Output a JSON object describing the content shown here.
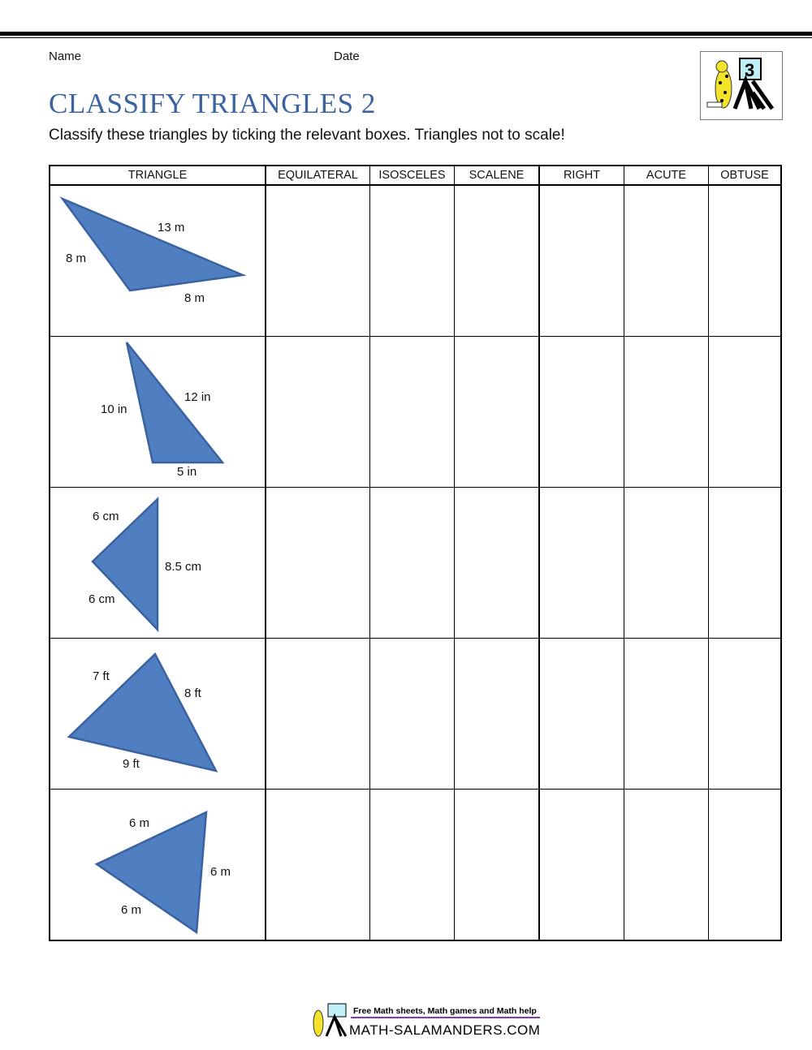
{
  "header": {
    "name_label": "Name",
    "date_label": "Date",
    "title": "CLASSIFY TRIANGLES 2",
    "instructions": "Classify these triangles by ticking the relevant boxes. Triangles not to scale!",
    "logo_grade": "3"
  },
  "table": {
    "columns": [
      "TRIANGLE",
      "EQUILATERAL",
      "ISOSCELES",
      "SCALENE",
      "RIGHT",
      "ACUTE",
      "OBTUSE"
    ],
    "rows": [
      {
        "sides": [
          "13 m",
          "8 m",
          "8 m"
        ]
      },
      {
        "sides": [
          "10 in",
          "12 in",
          "5 in"
        ]
      },
      {
        "sides": [
          "6 cm",
          "8.5 cm",
          "6 cm"
        ]
      },
      {
        "sides": [
          "7 ft",
          "8 ft",
          "9 ft"
        ]
      },
      {
        "sides": [
          "6 m",
          "6 m",
          "6 m"
        ]
      }
    ]
  },
  "colors": {
    "title": "#3b63a0",
    "triangle_fill": "#4f7fc0",
    "triangle_stroke": "#3a62a0"
  },
  "footer": {
    "tagline": "Free Math sheets, Math games and Math help",
    "brand": "MATH-SALAMANDERS.COM"
  }
}
